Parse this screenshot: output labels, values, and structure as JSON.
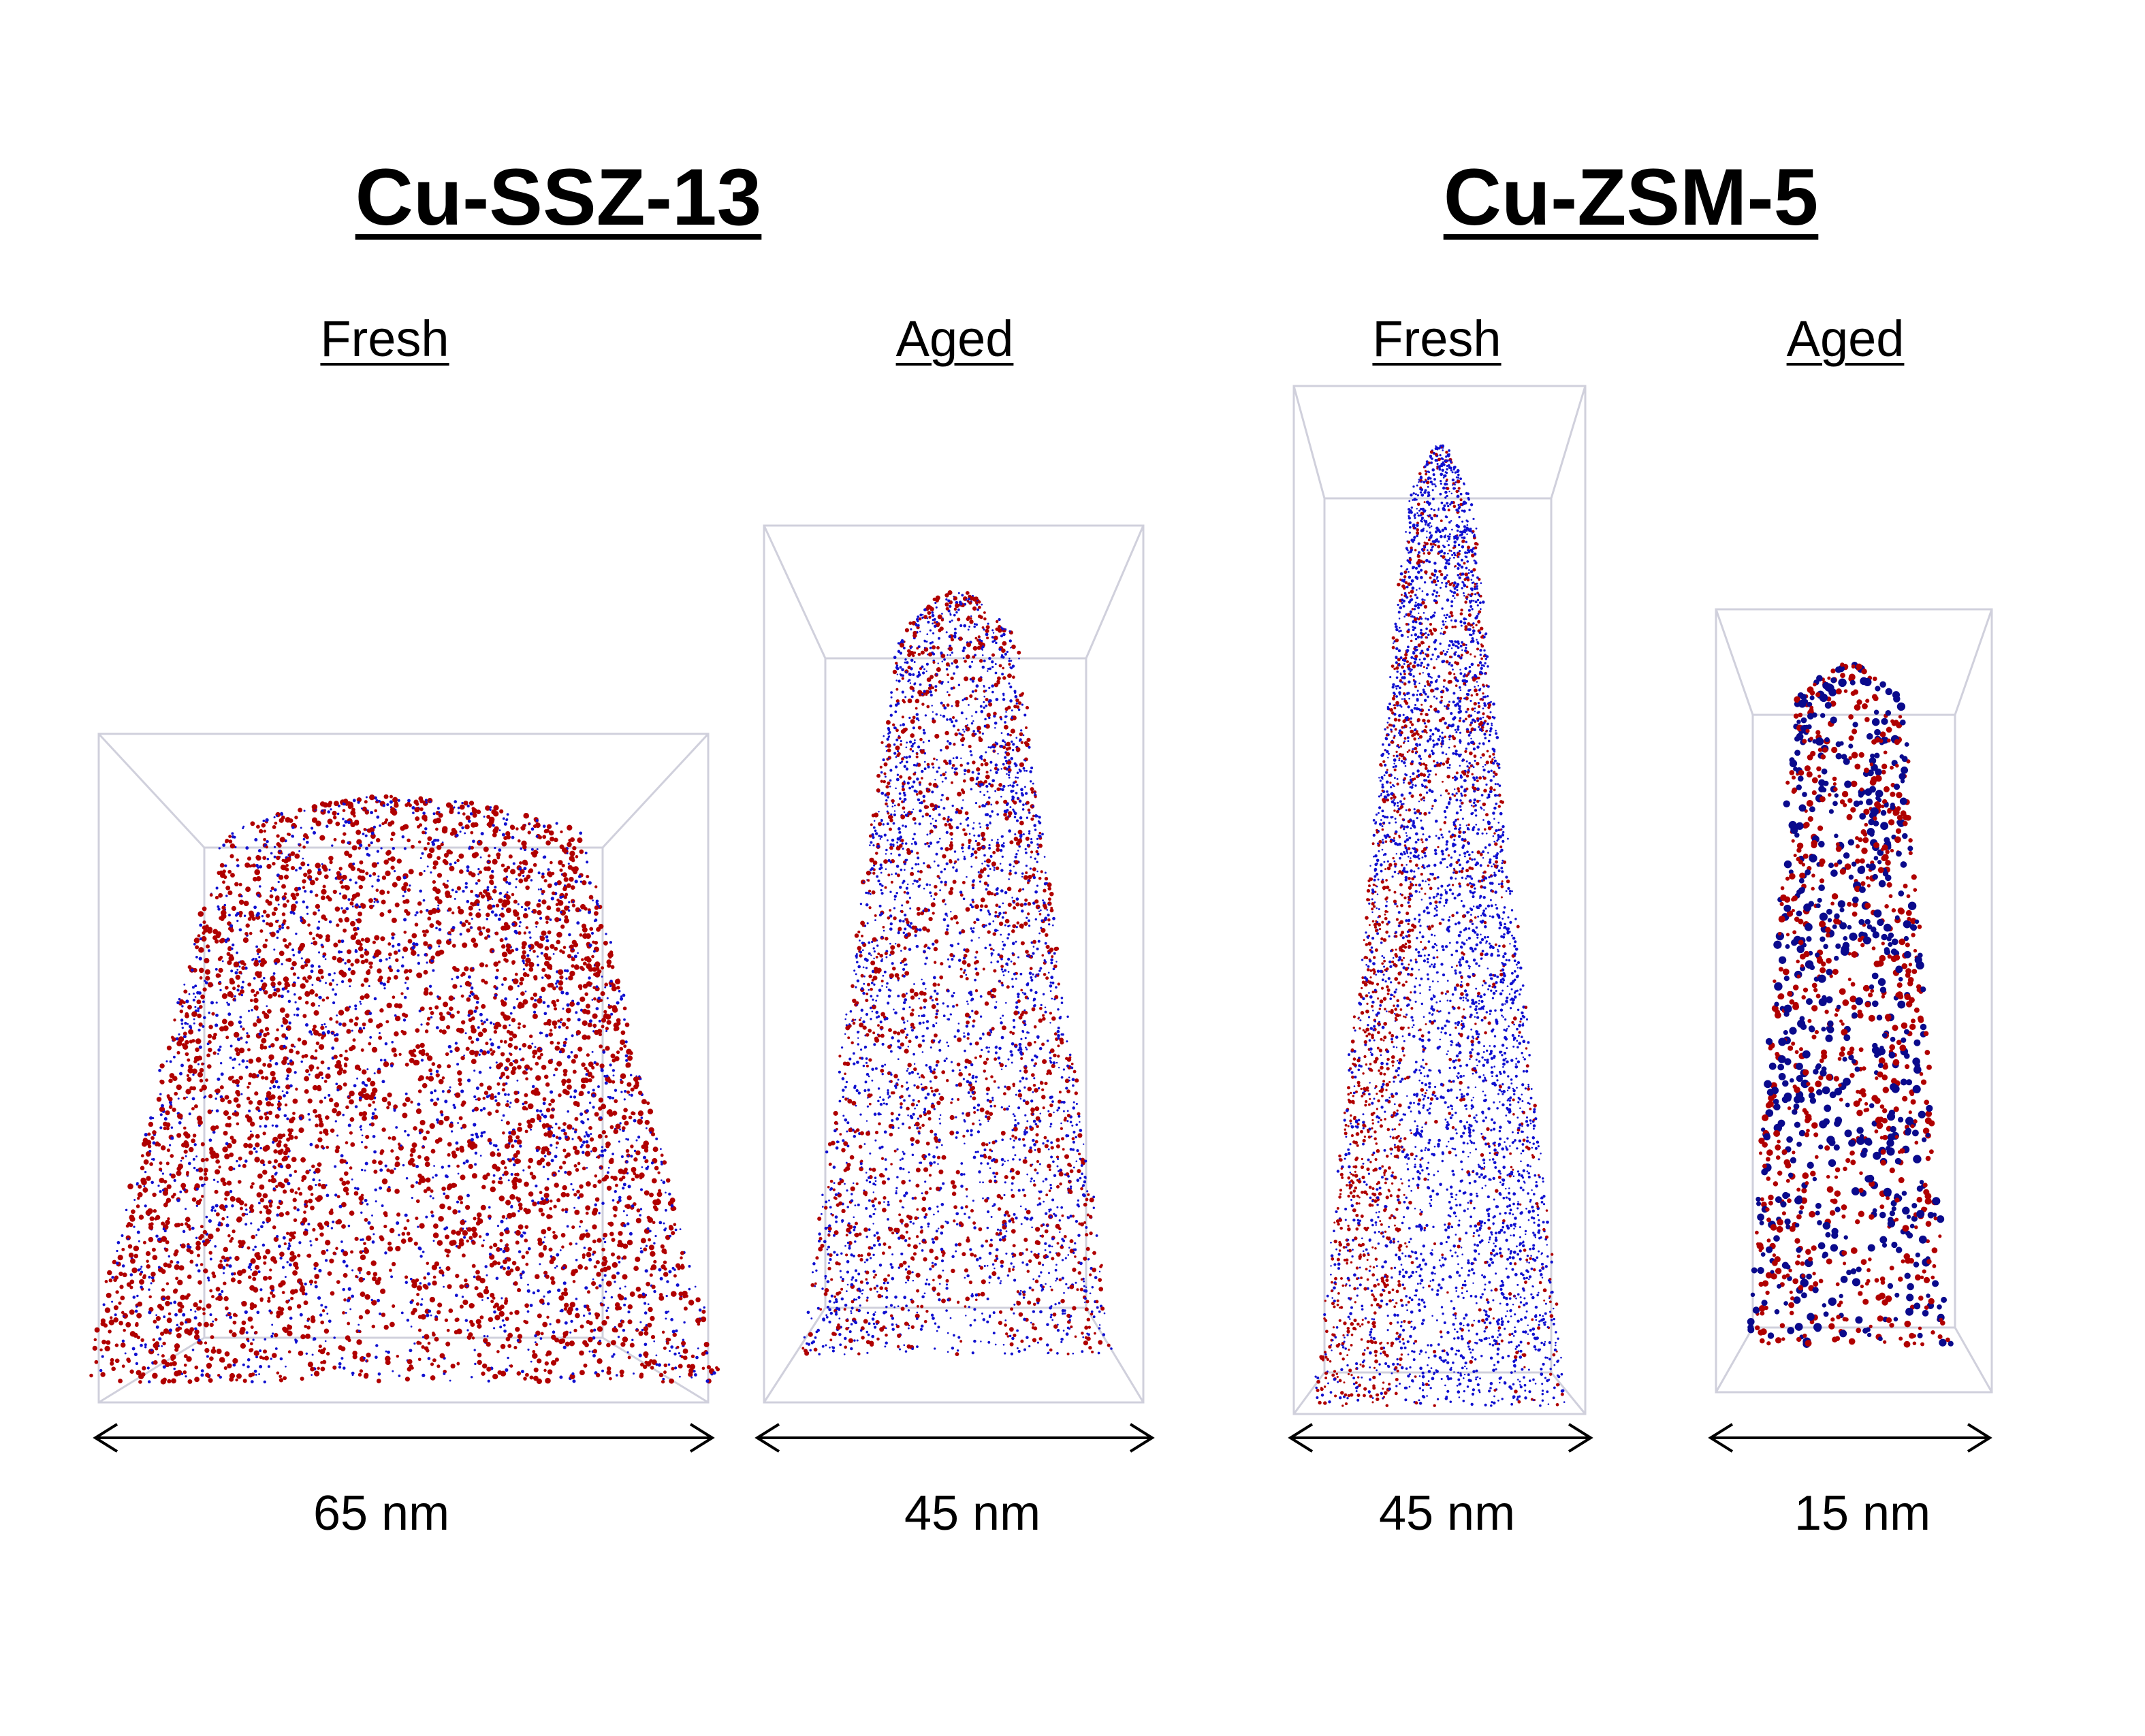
{
  "groups": [
    {
      "title": "Cu-SSZ-13"
    },
    {
      "title": "Cu-ZSM-5"
    }
  ],
  "panels": [
    {
      "label": "Fresh",
      "scale": "65 nm"
    },
    {
      "label": "Aged",
      "scale": "45 nm"
    },
    {
      "label": "Fresh",
      "scale": "45 nm"
    },
    {
      "label": "Aged",
      "scale": "15 nm"
    }
  ],
  "colors": {
    "red_atoms": "#b00000",
    "blue_atoms": "#1010d0",
    "dark_blue_atoms": "#0a0a8c",
    "box_edge": "#c8c8d8",
    "arrow": "#000000"
  }
}
